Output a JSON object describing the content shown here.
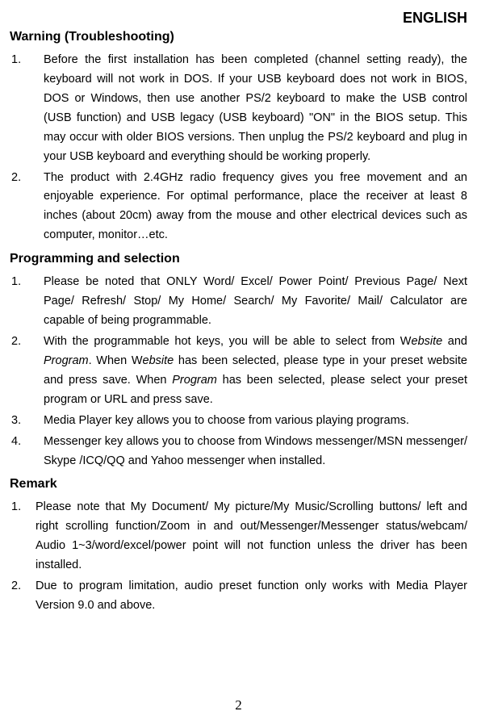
{
  "language_label": "ENGLISH",
  "page_number": "2",
  "sections": {
    "warning": {
      "heading": "Warning (Troubleshooting)",
      "items": {
        "n1": "1.",
        "t1": "Before the first installation has been completed (channel setting ready), the keyboard will not work in DOS. If your USB keyboard does not work in BIOS, DOS or Windows, then use another PS/2 keyboard to make the USB control (USB function) and USB legacy (USB keyboard) \"ON\" in the BIOS setup. This may occur with older BIOS versions. Then unplug the PS/2 keyboard and plug in your USB keyboard and everything should be working properly.",
        "n2": "2.",
        "t2": "The product with 2.4GHz radio frequency gives you free movement and an enjoyable experience. For optimal performance, place the receiver at least 8 inches (about 20cm) away from the mouse and other electrical devices such as computer, monitor…etc."
      }
    },
    "programming": {
      "heading": "Programming and selection",
      "items": {
        "n1": "1.",
        "t1": "Please be noted that ONLY Word/ Excel/ Power Point/ Previous Page/ Next Page/ Refresh/ Stop/ My Home/ Search/ My Favorite/ Mail/ Calculator are capable of being programmable.",
        "n2": "2.",
        "t2_a": "With the programmable hot keys, you will be able to select from W",
        "t2_b": "ebsite",
        "t2_c": " and ",
        "t2_d": "Program",
        "t2_e": ". When W",
        "t2_f": "ebsite",
        "t2_g": " has been selected, please type in your preset website and press save. When ",
        "t2_h": "Program",
        "t2_i": " has been selected, please select your preset program or URL and press save.",
        "n3": "3.",
        "t3": "Media Player key allows you to choose from various playing programs.",
        "n4": "4.",
        "t4": "Messenger key allows you to choose from Windows messenger/MSN messenger/ Skype /ICQ/QQ and Yahoo messenger when installed."
      }
    },
    "remark": {
      "heading": "Remark",
      "items": {
        "n1": "1.",
        "t1": "Please note that My Document/ My picture/My Music/Scrolling buttons/ left and right scrolling function/Zoom in and out/Messenger/Messenger status/webcam/ Audio 1~3/word/excel/power point will not function unless the driver has been installed.",
        "n2": "2.",
        "t2": "Due to program limitation, audio preset function only works with Media Player Version 9.0 and above."
      }
    }
  }
}
